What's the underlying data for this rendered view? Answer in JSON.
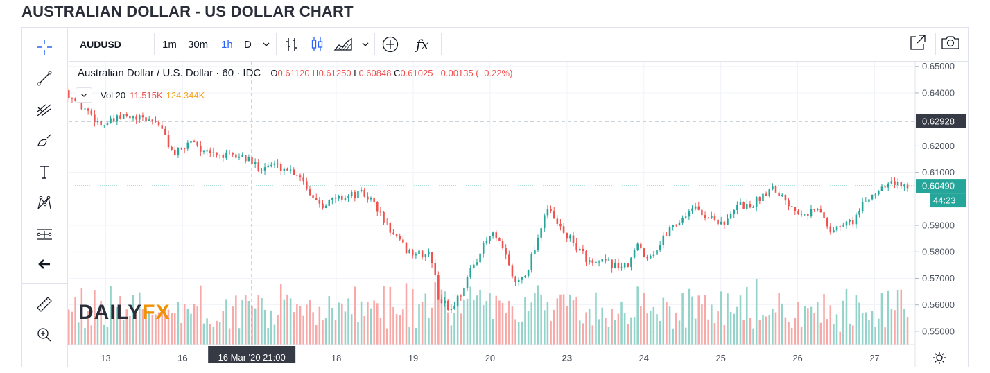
{
  "page": {
    "title": "AUSTRALIAN DOLLAR - US DOLLAR CHART"
  },
  "toolbar": {
    "symbol": "AUDUSD",
    "intervals": [
      "1m",
      "30m",
      "1h",
      "D"
    ],
    "active_interval": "1h",
    "indicators_label": "fx"
  },
  "left_tools": [
    "crosshair-icon",
    "trend-line-icon",
    "pitchfork-icon",
    "brush-icon",
    "text-icon",
    "pattern-icon",
    "measure-icon",
    "back-arrow-icon",
    "ruler-icon",
    "zoom-in-icon"
  ],
  "legend": {
    "instrument": "Australian Dollar / U.S. Dollar · 60 · IDC",
    "o_label": "O",
    "o_value": "0.61120",
    "h_label": "H",
    "h_value": "0.61250",
    "l_label": "L",
    "l_value": "0.60848",
    "c_label": "C",
    "c_value": "0.61025",
    "change": "−0.00135 (−0.22%)",
    "vol_label": "Vol 20",
    "vol_value": "11.515K",
    "vol_ma": "124.344K"
  },
  "watermark": {
    "part1": "DAILY",
    "part2": "FX"
  },
  "colors": {
    "up": "#26a69a",
    "down": "#ef5350",
    "vol_up": "#93d3ca",
    "vol_down": "#f7a9a7",
    "price_line": "#26a69a",
    "label_dark": "#363a45"
  },
  "chart_data": {
    "type": "candlestick",
    "title": "AUSTRALIAN DOLLAR - US DOLLAR CHART",
    "ylim": [
      0.545,
      0.6515
    ],
    "y_ticks": [
      "0.65000",
      "0.64000",
      "0.62000",
      "0.61000",
      "0.59000",
      "0.58000",
      "0.57000",
      "0.56000",
      "0.55000"
    ],
    "x_ticks": [
      {
        "label": "13",
        "t": 0.5
      },
      {
        "label": "16",
        "t": 1.5
      },
      {
        "label": "18",
        "t": 3.5
      },
      {
        "label": "19",
        "t": 4.5
      },
      {
        "label": "20",
        "t": 5.5
      },
      {
        "label": "23",
        "t": 6.5
      },
      {
        "label": "24",
        "t": 7.5
      },
      {
        "label": "25",
        "t": 8.5
      },
      {
        "label": "26",
        "t": 9.5
      },
      {
        "label": "27",
        "t": 10.5
      }
    ],
    "x_bold_ticks": [
      "16",
      "23"
    ],
    "x_range": [
      0,
      10.55
    ],
    "crosshair": {
      "t": 2.4,
      "label": "16 Mar '20   21:00",
      "price_label": "0.62928",
      "price": 0.62928
    },
    "last_price": {
      "value": "0.60490",
      "price": 0.6049,
      "countdown": "44:23"
    },
    "price_path": [
      [
        0.0,
        0.641
      ],
      [
        0.15,
        0.636
      ],
      [
        0.3,
        0.633
      ],
      [
        0.45,
        0.628
      ],
      [
        0.6,
        0.629
      ],
      [
        0.75,
        0.631
      ],
      [
        0.9,
        0.63
      ],
      [
        1.05,
        0.63
      ],
      [
        1.2,
        0.629
      ],
      [
        1.4,
        0.617
      ],
      [
        1.5,
        0.618
      ],
      [
        1.65,
        0.623
      ],
      [
        1.8,
        0.617
      ],
      [
        1.95,
        0.617
      ],
      [
        2.1,
        0.616
      ],
      [
        2.3,
        0.616
      ],
      [
        2.5,
        0.612
      ],
      [
        2.7,
        0.613
      ],
      [
        2.9,
        0.611
      ],
      [
        3.05,
        0.609
      ],
      [
        3.2,
        0.601
      ],
      [
        3.35,
        0.598
      ],
      [
        3.5,
        0.6
      ],
      [
        3.65,
        0.601
      ],
      [
        3.85,
        0.602
      ],
      [
        4.0,
        0.599
      ],
      [
        4.15,
        0.591
      ],
      [
        4.3,
        0.585
      ],
      [
        4.45,
        0.58
      ],
      [
        4.6,
        0.579
      ],
      [
        4.75,
        0.579
      ],
      [
        4.85,
        0.563
      ],
      [
        5.0,
        0.558
      ],
      [
        5.15,
        0.565
      ],
      [
        5.3,
        0.575
      ],
      [
        5.45,
        0.583
      ],
      [
        5.55,
        0.587
      ],
      [
        5.7,
        0.58
      ],
      [
        5.85,
        0.568
      ],
      [
        6.0,
        0.573
      ],
      [
        6.15,
        0.586
      ],
      [
        6.25,
        0.597
      ],
      [
        6.4,
        0.59
      ],
      [
        6.55,
        0.585
      ],
      [
        6.7,
        0.58
      ],
      [
        6.85,
        0.575
      ],
      [
        7.0,
        0.576
      ],
      [
        7.15,
        0.575
      ],
      [
        7.3,
        0.574
      ],
      [
        7.45,
        0.583
      ],
      [
        7.55,
        0.578
      ],
      [
        7.7,
        0.581
      ],
      [
        7.85,
        0.589
      ],
      [
        8.0,
        0.592
      ],
      [
        8.15,
        0.597
      ],
      [
        8.3,
        0.594
      ],
      [
        8.45,
        0.592
      ],
      [
        8.6,
        0.591
      ],
      [
        8.75,
        0.598
      ],
      [
        8.9,
        0.597
      ],
      [
        9.05,
        0.601
      ],
      [
        9.2,
        0.605
      ],
      [
        9.35,
        0.6
      ],
      [
        9.5,
        0.596
      ],
      [
        9.65,
        0.595
      ],
      [
        9.8,
        0.596
      ],
      [
        9.95,
        0.588
      ],
      [
        10.1,
        0.59
      ],
      [
        10.25,
        0.592
      ],
      [
        10.4,
        0.599
      ],
      [
        10.55,
        0.603
      ],
      [
        10.7,
        0.607
      ],
      [
        10.85,
        0.605
      ],
      [
        10.95,
        0.6049
      ]
    ]
  }
}
